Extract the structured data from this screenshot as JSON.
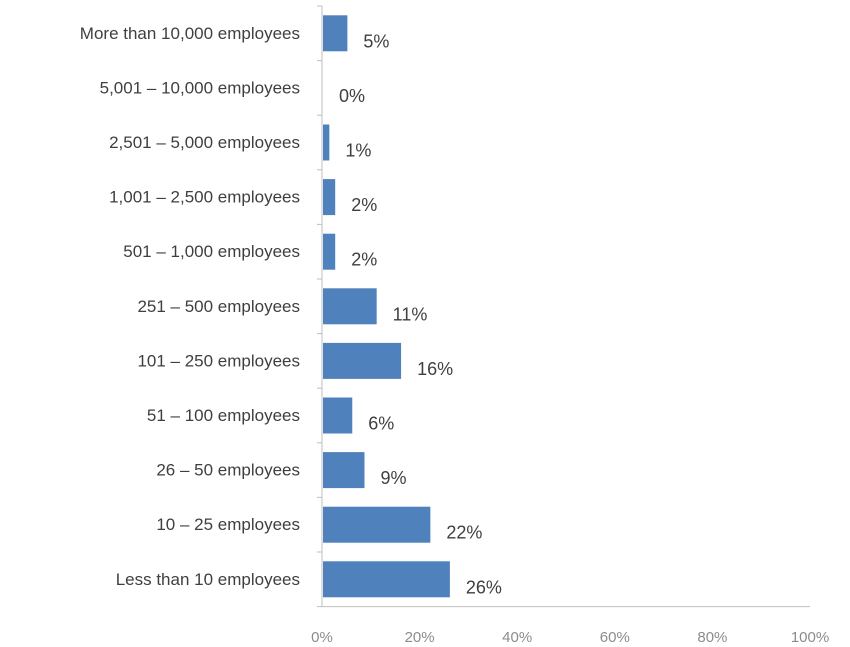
{
  "chart_data": {
    "type": "bar",
    "orientation": "horizontal",
    "title": "",
    "xlabel": "",
    "ylabel": "",
    "categories": [
      "More than 10,000 employees",
      "5,001 – 10,000 employees",
      "2,501 – 5,000 employees",
      "1,001 – 2,500 employees",
      "501 – 1,000 employees",
      "251 – 500 employees",
      "101 – 250 employees",
      "51 – 100 employees",
      "26 – 50 employees",
      "10 – 25 employees",
      "Less than 10 employees"
    ],
    "values": [
      5,
      0,
      1,
      2,
      2,
      11,
      16,
      6,
      9,
      22,
      26
    ],
    "bar_value_fractions": [
      0.05,
      0,
      0.013,
      0.025,
      0.025,
      0.11,
      0.16,
      0.06,
      0.085,
      0.22,
      0.26
    ],
    "data_labels": [
      "5%",
      "0%",
      "1%",
      "2%",
      "2%",
      "11%",
      "16%",
      "6%",
      "9%",
      "22%",
      "26%"
    ],
    "xlim": [
      0,
      100
    ],
    "x_ticks": [
      0,
      20,
      40,
      60,
      80,
      100
    ],
    "x_tick_labels": [
      "0%",
      "20%",
      "40%",
      "60%",
      "80%",
      "100%"
    ],
    "grid": false,
    "legend": "none",
    "colors": {
      "bar": "#4f81bd",
      "axis": "#bfbfbf",
      "category_text": "#3f3f3f",
      "tick_text": "#8c8c8c"
    }
  }
}
